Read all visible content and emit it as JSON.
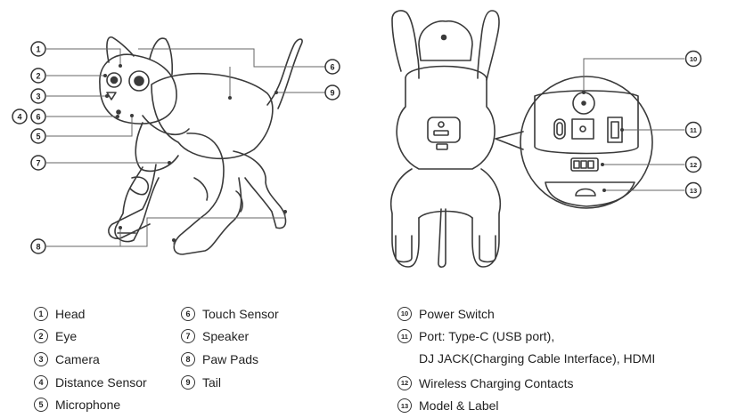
{
  "callout_numbers": [
    "1",
    "2",
    "3",
    "4",
    "6",
    "5",
    "7",
    "8",
    "6",
    "9",
    "10",
    "11",
    "12",
    "13"
  ],
  "legend": [
    {
      "n": "1",
      "label": "Head"
    },
    {
      "n": "2",
      "label": "Eye"
    },
    {
      "n": "3",
      "label": "Camera"
    },
    {
      "n": "4",
      "label": "Distance Sensor"
    },
    {
      "n": "5",
      "label": "Microphone"
    },
    {
      "n": "6",
      "label": "Touch Sensor"
    },
    {
      "n": "7",
      "label": "Speaker"
    },
    {
      "n": "8",
      "label": "Paw Pads"
    },
    {
      "n": "9",
      "label": "Tail"
    },
    {
      "n": "10",
      "label": "Power Switch"
    },
    {
      "n": "11",
      "label": "Port: Type-C (USB port),",
      "extra": "DJ JACK(Charging Cable Interface), HDMI"
    },
    {
      "n": "12",
      "label": "Wireless Charging Contacts"
    },
    {
      "n": "13",
      "label": "Model & Label"
    }
  ],
  "colors": {
    "line": "#3a3a3a",
    "badge": "#333333",
    "text": "#222222"
  }
}
